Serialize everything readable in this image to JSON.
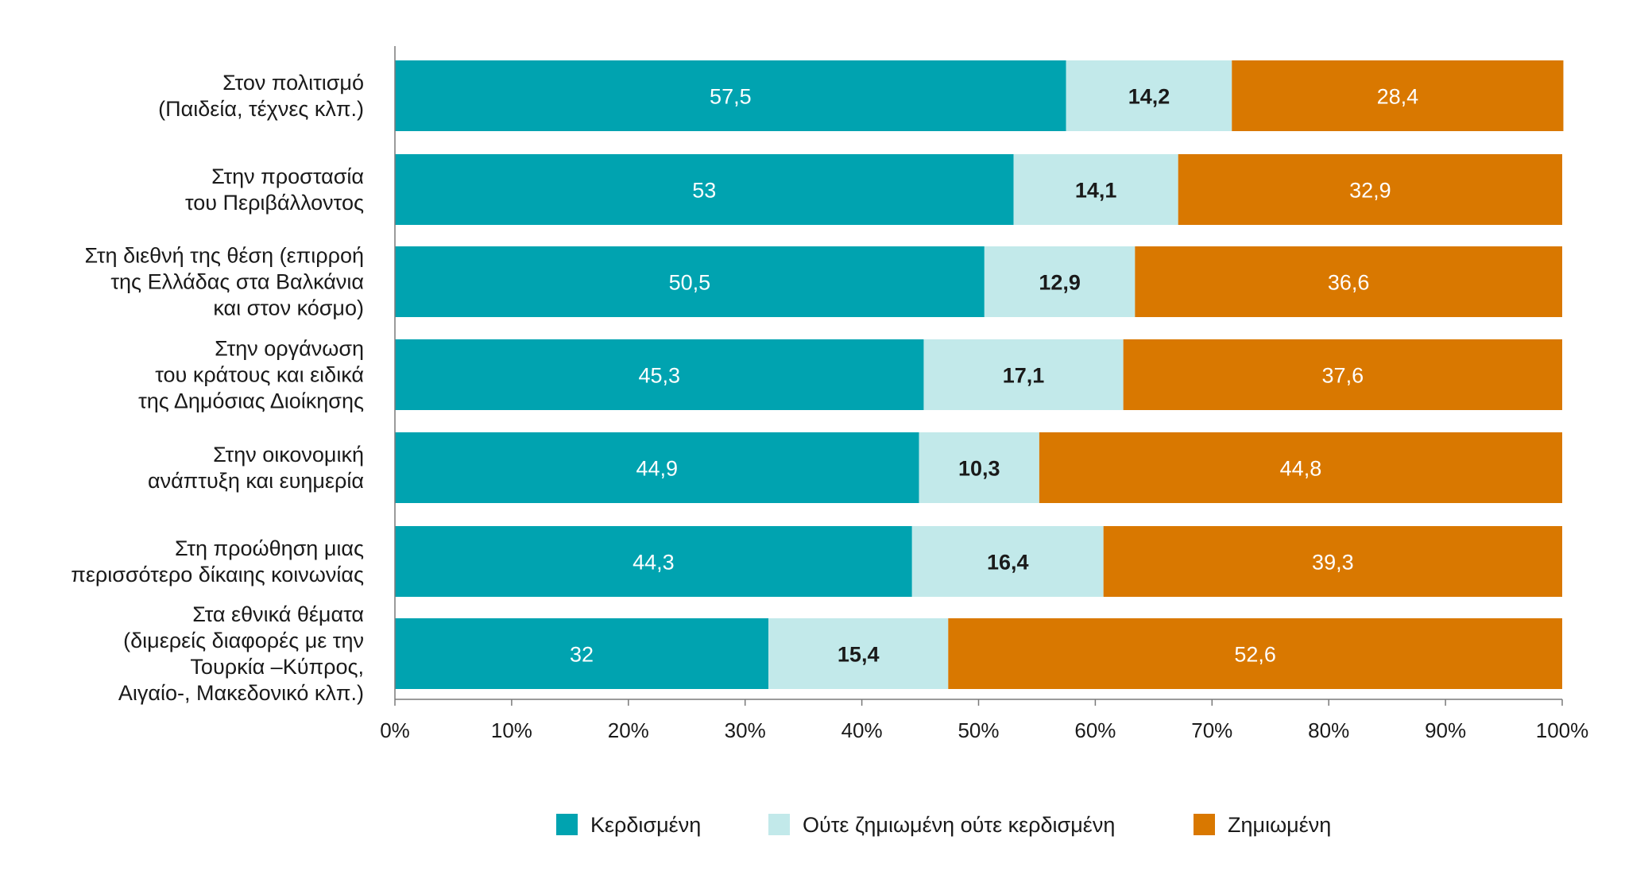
{
  "chart_data": {
    "type": "bar",
    "orientation": "horizontal",
    "stacked": "percent",
    "categories": [
      [
        "Στον πολιτισμό",
        "(Παιδεία, τέχνες κλπ.)"
      ],
      [
        "Στην προστασία",
        "του Περιβάλλοντος"
      ],
      [
        "Στη διεθνή της θέση (επιρροή",
        "της Ελλάδας στα Βαλκάνια",
        "και στον κόσμο)"
      ],
      [
        "Στην οργάνωση",
        "του κράτους και ειδικά",
        "της Δημόσιας Διοίκησης"
      ],
      [
        "Στην οικονομική",
        "ανάπτυξη και ευημερία"
      ],
      [
        "Στη προώθηση μιας",
        "περισσότερο  δίκαιης κοινωνίας"
      ],
      [
        "Στα εθνικά θέματα",
        "(διμερείς διαφορές με την",
        "Τουρκία –Κύπρος,",
        "Αιγαίο-, Μακεδονικό κλπ.)"
      ]
    ],
    "series": [
      {
        "name": "Κερδισμένη",
        "color": "#00a3b0",
        "label_color": "#ffffff",
        "values": [
          57.5,
          53,
          50.5,
          45.3,
          44.9,
          44.3,
          32
        ],
        "labels": [
          "57,5",
          "53",
          "50,5",
          "45,3",
          "44,9",
          "44,3",
          "32"
        ]
      },
      {
        "name": "Ούτε ζημιωμένη ούτε κερδισμένη",
        "color": "#c2e9ea",
        "label_color": "#1a1a1a",
        "values": [
          14.2,
          14.1,
          12.9,
          17.1,
          10.3,
          16.4,
          15.4
        ],
        "labels": [
          "14,2",
          "14,1",
          "12,9",
          "17,1",
          "10,3",
          "16,4",
          "15,4"
        ]
      },
      {
        "name": "Ζημιωμένη",
        "color": "#d97800",
        "label_color": "#ffffff",
        "values": [
          28.4,
          32.9,
          36.6,
          37.6,
          44.8,
          39.3,
          52.6
        ],
        "labels": [
          "28,4",
          "32,9",
          "36,6",
          "37,6",
          "44,8",
          "39,3",
          "52,6"
        ]
      }
    ],
    "xlim": [
      0,
      100
    ],
    "xticks": [
      "0%",
      "10%",
      "20%",
      "30%",
      "40%",
      "50%",
      "60%",
      "70%",
      "80%",
      "90%",
      "100%"
    ],
    "grid": false,
    "legend": "bottom"
  }
}
